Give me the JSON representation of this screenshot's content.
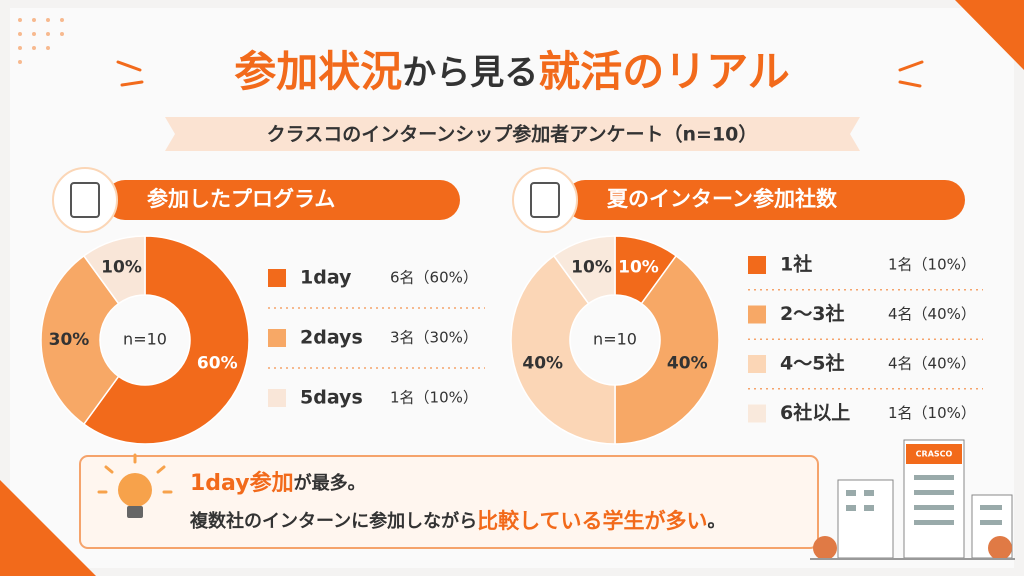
{
  "header": {
    "title": [
      {
        "text": "参加状況",
        "em": true
      },
      {
        "text": "から見る",
        "em": false
      },
      {
        "text": "就活のリアル",
        "em": true
      }
    ],
    "subtitle": "クラスコのインターンシップ参加者アンケート（n=10）"
  },
  "chart_data": [
    {
      "type": "donut",
      "title": "参加したプログラム",
      "center_label": "n=10",
      "categories": [
        "1day",
        "2days",
        "5days"
      ],
      "values": [
        60,
        30,
        10
      ],
      "value_labels": [
        "60%",
        "30%",
        "10%"
      ],
      "legend_counts": [
        "6名（60%）",
        "3名（30%）",
        "1名（10%）"
      ],
      "colors": [
        "#f26a1b",
        "#f7a866",
        "#f9e6d8"
      ],
      "label_colors": [
        "#ffffff",
        "#333333",
        "#333333"
      ]
    },
    {
      "type": "donut",
      "title": "夏のインターン参加社数",
      "center_label": "n=10",
      "categories": [
        "1社",
        "2〜3社",
        "4〜5社",
        "6社以上"
      ],
      "values": [
        10,
        40,
        40,
        10
      ],
      "value_labels": [
        "10%",
        "40%",
        "40%",
        "10%"
      ],
      "legend_counts": [
        "1名（10%）",
        "4名（40%）",
        "4名（40%）",
        "1名（10%）"
      ],
      "colors": [
        "#f26a1b",
        "#f7a866",
        "#fbd6b6",
        "#f9e9dc"
      ],
      "label_colors": [
        "#ffffff",
        "#333333",
        "#333333",
        "#333333"
      ]
    }
  ],
  "callout": {
    "line1": [
      {
        "text": "1day参加",
        "em": true
      },
      {
        "text": "が最多。",
        "em": false
      }
    ],
    "line2": [
      {
        "text": "複数社のインターンに参加しながら",
        "em": false
      },
      {
        "text": "比較している学生が多い",
        "em": true
      },
      {
        "text": "。",
        "em": false
      }
    ]
  },
  "illustration_label": "CRASCO"
}
